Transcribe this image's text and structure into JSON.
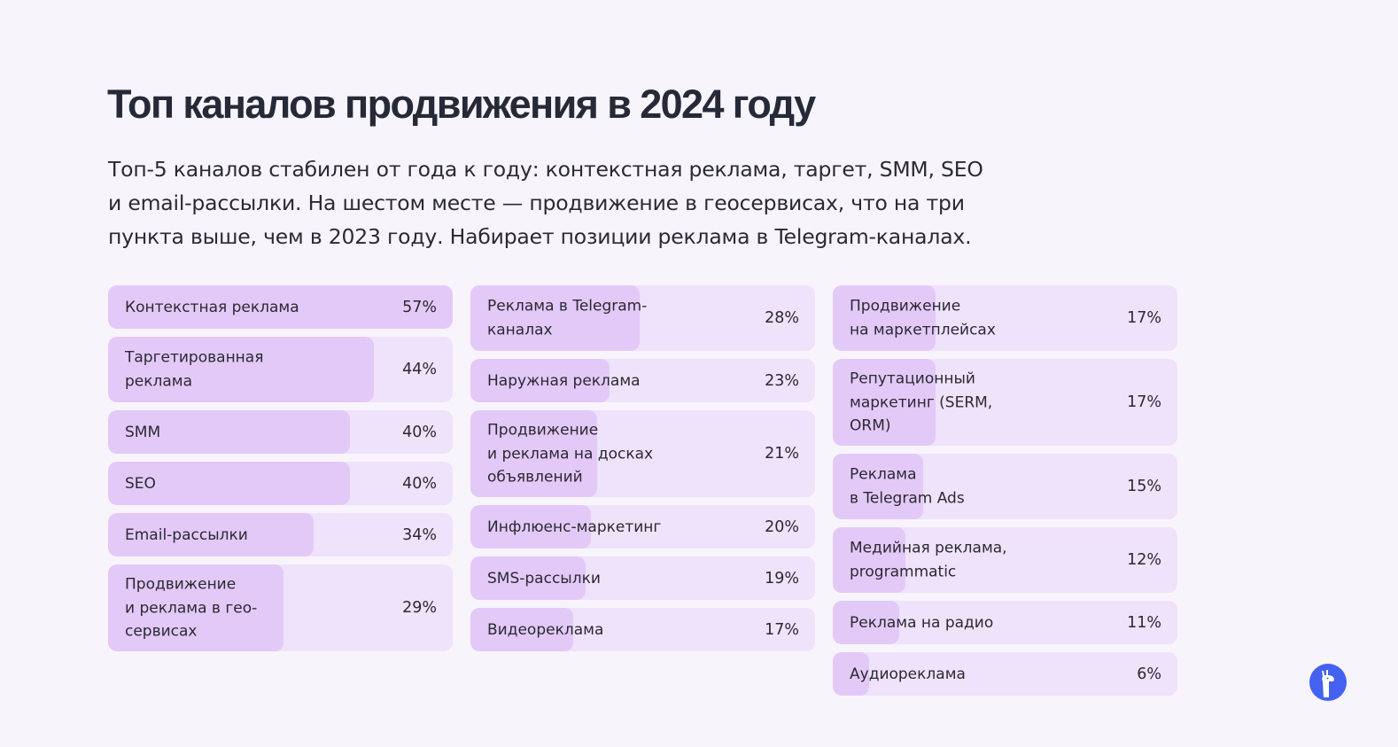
{
  "title": "Топ каналов продвижения в 2024 году",
  "subtitle": "Топ-5 каналов стабилен от года к году: контекстная реклама, таргет, SMM, SEO\nи email-рассылки. На шестом месте — продвижение в геосервисах, что на три\nпункта выше, чем в 2023 году. Набирает позиции реклама в Telegram-каналах.",
  "colors": {
    "fill": "#e3c9f8",
    "track": "#efe2fb",
    "background": "#f8f4fc",
    "logo": "#4461f2"
  },
  "logo_icon": "llama-logo",
  "chart_data": {
    "type": "bar",
    "orientation": "horizontal",
    "unit": "%",
    "xlim": [
      0,
      57
    ],
    "columns": [
      [
        {
          "label": "Контекстная реклама",
          "value": 57
        },
        {
          "label": "Таргетированная\nреклама",
          "value": 44
        },
        {
          "label": "SMM",
          "value": 40
        },
        {
          "label": "SEO",
          "value": 40
        },
        {
          "label": "Email-рассылки",
          "value": 34
        },
        {
          "label": "Продвижение\nи реклама в гео-\nсервисах",
          "value": 29
        }
      ],
      [
        {
          "label": "Реклама в Telegram-\nканалах",
          "value": 28
        },
        {
          "label": "Наружная реклама",
          "value": 23
        },
        {
          "label": "Продвижение\nи реклама на досках\nобъявлений",
          "value": 21
        },
        {
          "label": "Инфлюенс-маркетинг",
          "value": 20
        },
        {
          "label": "SMS-рассылки",
          "value": 19
        },
        {
          "label": "Видеореклама",
          "value": 17
        }
      ],
      [
        {
          "label": "Продвижение\nна маркетплейсах",
          "value": 17
        },
        {
          "label": "Репутационный\nмаркетинг (SERM,\nORM)",
          "value": 17
        },
        {
          "label": "Реклама\nв Telegram Ads",
          "value": 15
        },
        {
          "label": "Медийная реклама,\nprogrammatic",
          "value": 12
        },
        {
          "label": "Реклама на радио",
          "value": 11
        },
        {
          "label": "Аудиореклама",
          "value": 6
        }
      ]
    ]
  }
}
